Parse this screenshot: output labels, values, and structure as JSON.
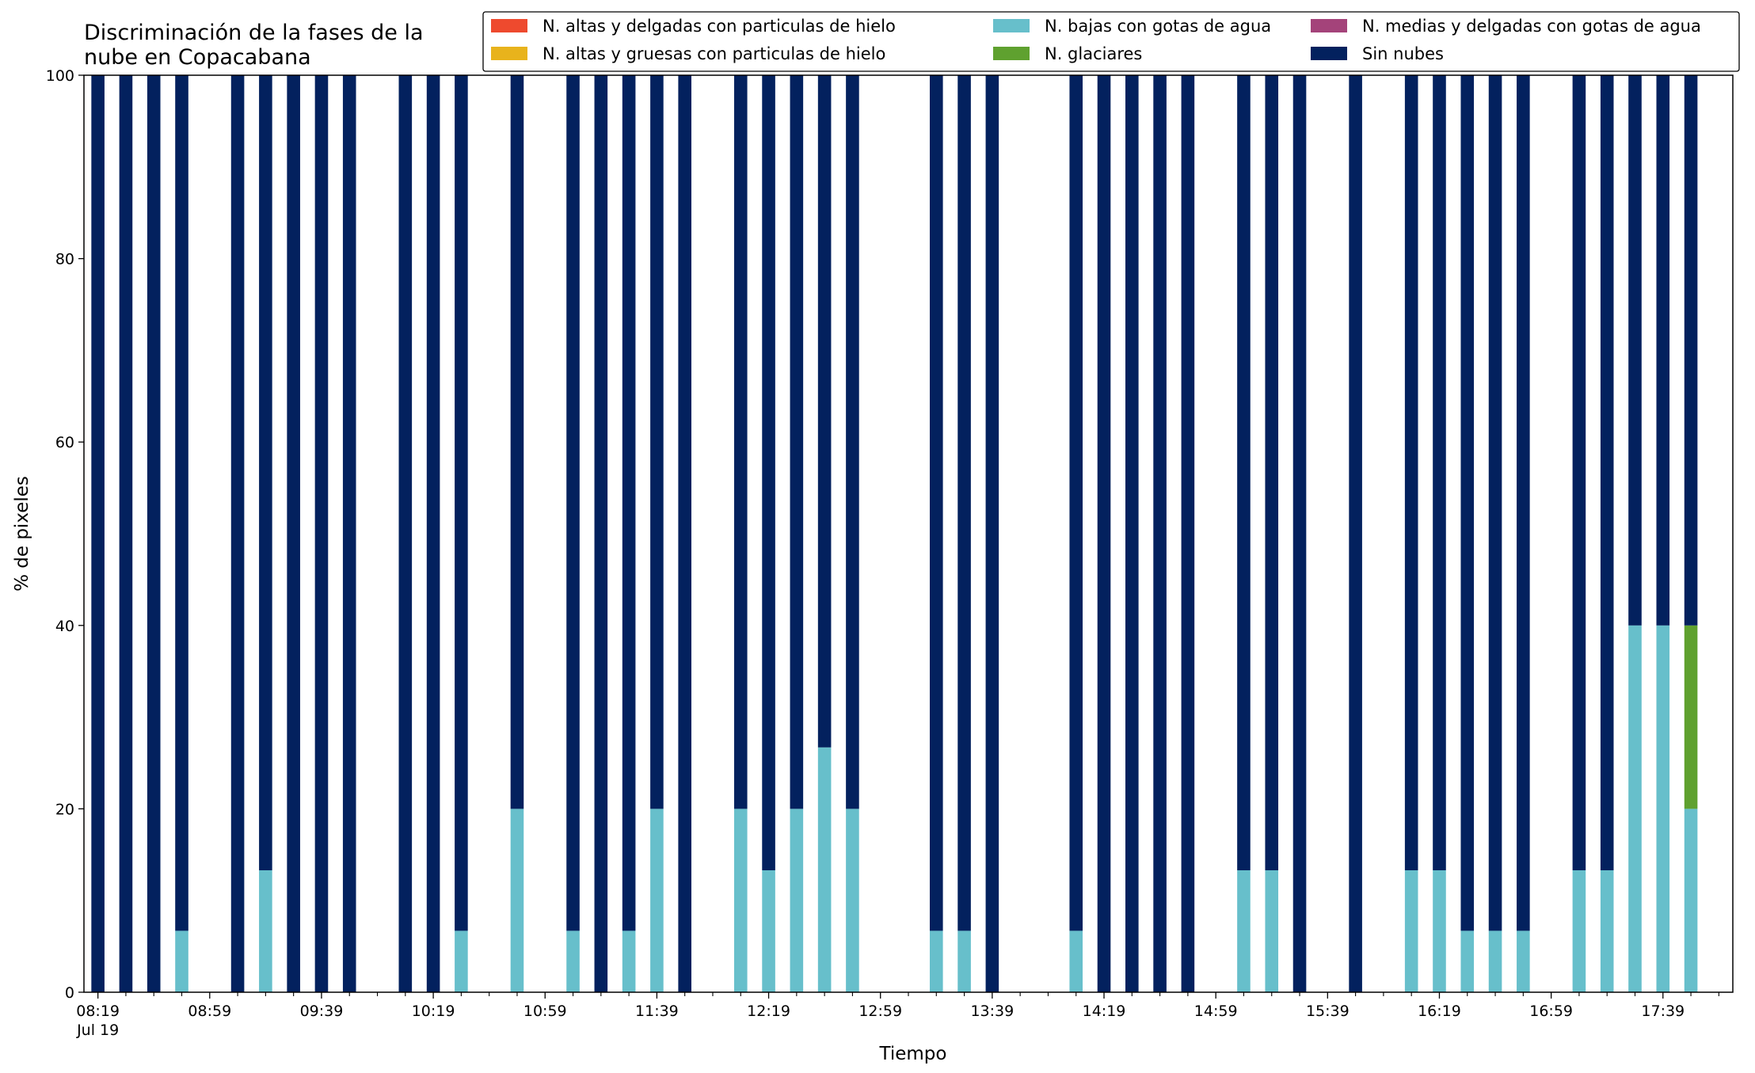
{
  "chart_data": {
    "type": "bar",
    "stacked": true,
    "title": "Discriminación de la fases de la\nnube en Copacabana",
    "title_lines": [
      "Discriminación de la fases de la",
      "nube en Copacabana"
    ],
    "xlabel": "Tiempo",
    "ylabel": "% de pixeles",
    "ylim": [
      0,
      100
    ],
    "yticks": [
      0,
      20,
      40,
      60,
      80,
      100
    ],
    "xlim": [
      "08:14",
      "18:04"
    ],
    "date_label": "Jul 19",
    "xtick_labels": [
      "08:19",
      "08:59",
      "09:39",
      "10:19",
      "10:59",
      "11:39",
      "12:19",
      "12:59",
      "13:39",
      "14:19",
      "14:59",
      "15:39",
      "16:19",
      "16:59",
      "17:39"
    ],
    "minor_tick_minutes": 10,
    "grid": false,
    "legend_position": "top-right",
    "legend_columns": 3,
    "bar_width_minutes": 4.7,
    "times": [
      "08:19",
      "08:29",
      "08:39",
      "08:49",
      "09:09",
      "09:19",
      "09:29",
      "09:39",
      "09:49",
      "10:09",
      "10:19",
      "10:29",
      "10:49",
      "11:09",
      "11:19",
      "11:29",
      "11:39",
      "11:49",
      "12:09",
      "12:19",
      "12:29",
      "12:39",
      "12:49",
      "13:19",
      "13:29",
      "13:39",
      "14:09",
      "14:19",
      "14:29",
      "14:39",
      "14:49",
      "15:09",
      "15:19",
      "15:29",
      "15:49",
      "16:09",
      "16:19",
      "16:29",
      "16:39",
      "16:49",
      "17:09",
      "17:19",
      "17:29",
      "17:39",
      "17:49"
    ],
    "series": [
      {
        "name": "N. altas y delgadas con particulas de hielo",
        "color": "#EE4A2E",
        "values": [
          0,
          0,
          0,
          0,
          0,
          0,
          0,
          0,
          0,
          0,
          0,
          0,
          0,
          0,
          0,
          0,
          0,
          0,
          0,
          0,
          0,
          0,
          0,
          0,
          0,
          0,
          0,
          0,
          0,
          0,
          0,
          0,
          0,
          0,
          0,
          0,
          0,
          0,
          0,
          0,
          0,
          0,
          0,
          0,
          0
        ]
      },
      {
        "name": "N. altas y gruesas con particulas de hielo",
        "color": "#E8B31C",
        "values": [
          0,
          0,
          0,
          0,
          0,
          0,
          0,
          0,
          0,
          0,
          0,
          0,
          0,
          0,
          0,
          0,
          0,
          0,
          0,
          0,
          0,
          0,
          0,
          0,
          0,
          0,
          0,
          0,
          0,
          0,
          0,
          0,
          0,
          0,
          0,
          0,
          0,
          0,
          0,
          0,
          0,
          0,
          0,
          0,
          0
        ]
      },
      {
        "name": "N. bajas con gotas de agua",
        "color": "#67BFCB",
        "values": [
          0,
          0,
          0,
          6.7,
          0,
          13.3,
          0,
          0,
          0,
          0,
          0,
          6.7,
          20,
          6.7,
          0,
          6.7,
          20,
          0,
          20,
          13.3,
          20,
          26.7,
          20,
          6.7,
          6.7,
          0,
          6.7,
          0,
          0,
          0,
          0,
          13.3,
          13.3,
          0,
          0,
          13.3,
          13.3,
          6.7,
          6.7,
          6.7,
          13.3,
          13.3,
          40,
          40,
          20
        ]
      },
      {
        "name": "N. glaciares",
        "color": "#5FA12F",
        "values": [
          0,
          0,
          0,
          0,
          0,
          0,
          0,
          0,
          0,
          0,
          0,
          0,
          0,
          0,
          0,
          0,
          0,
          0,
          0,
          0,
          0,
          0,
          0,
          0,
          0,
          0,
          0,
          0,
          0,
          0,
          0,
          0,
          0,
          0,
          0,
          0,
          0,
          0,
          0,
          0,
          0,
          0,
          0,
          0,
          20
        ]
      },
      {
        "name": "N. medias y delgadas con gotas de agua",
        "color": "#A4437A",
        "values": [
          0,
          0,
          0,
          0,
          0,
          0,
          0,
          0,
          0,
          0,
          0,
          0,
          0,
          0,
          0,
          0,
          0,
          0,
          0,
          0,
          0,
          0,
          0,
          0,
          0,
          0,
          0,
          0,
          0,
          0,
          0,
          0,
          0,
          0,
          0,
          0,
          0,
          0,
          0,
          0,
          0,
          0,
          0,
          0,
          0
        ]
      },
      {
        "name": "Sin nubes",
        "color": "#03215E",
        "values": [
          100,
          100,
          100,
          93.3,
          100,
          86.7,
          100,
          100,
          100,
          100,
          100,
          93.3,
          80,
          93.3,
          100,
          93.3,
          80,
          100,
          80,
          86.7,
          80,
          73.3,
          80,
          93.3,
          93.3,
          100,
          93.3,
          100,
          100,
          100,
          100,
          86.7,
          86.7,
          100,
          100,
          86.7,
          86.7,
          93.3,
          93.3,
          93.3,
          86.7,
          86.7,
          60,
          60,
          60
        ]
      }
    ]
  }
}
